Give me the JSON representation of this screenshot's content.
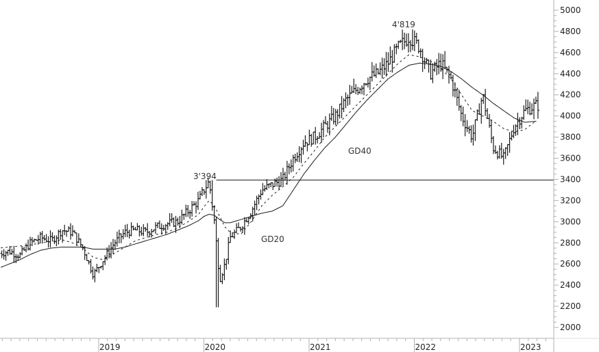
{
  "chart_data": {
    "type": "ohlc-bar",
    "title": "",
    "xlabel": "",
    "ylabel": "",
    "ylim": [
      2000,
      5000
    ],
    "y_ticks": [
      "5000",
      "4800",
      "4600",
      "4400",
      "4200",
      "4000",
      "3800",
      "3600",
      "3400",
      "3200",
      "3000",
      "2800",
      "2600",
      "2400",
      "2200",
      "2000"
    ],
    "x_ticks": [
      "2019",
      "2020",
      "2021",
      "2022",
      "2023"
    ],
    "grid": false,
    "legend": "none",
    "annotations": [
      {
        "text": "3'394",
        "value": 3394,
        "type": "peak-label"
      },
      {
        "text": "4'819",
        "value": 4819,
        "type": "peak-label"
      },
      {
        "text": "GD20",
        "type": "series-label",
        "series": "GD20"
      },
      {
        "text": "GD40",
        "type": "series-label",
        "series": "GD40"
      }
    ],
    "horizontal_line": {
      "value": 3394,
      "from_date": 2020.0,
      "to_date": 2023.25
    },
    "series": [
      {
        "name": "Price (weekly bars)",
        "style": "ohlc"
      },
      {
        "name": "GD20",
        "style": "dashed",
        "description": "20-week moving average"
      },
      {
        "name": "GD40",
        "style": "solid",
        "description": "40-week moving average"
      }
    ],
    "x": [
      2018.05,
      2018.15,
      2018.25,
      2018.35,
      2018.45,
      2018.55,
      2018.65,
      2018.75,
      2018.85,
      2018.95,
      2019.05,
      2019.15,
      2019.25,
      2019.35,
      2019.45,
      2019.55,
      2019.65,
      2019.75,
      2019.85,
      2019.95,
      2020.0,
      2020.05,
      2020.1,
      2020.15,
      2020.2,
      2020.25,
      2020.35,
      2020.45,
      2020.55,
      2020.65,
      2020.75,
      2020.85,
      2020.95,
      2021.05,
      2021.15,
      2021.25,
      2021.35,
      2021.45,
      2021.55,
      2021.65,
      2021.75,
      2021.85,
      2021.95,
      2022.05,
      2022.15,
      2022.25,
      2022.35,
      2022.45,
      2022.55,
      2022.65,
      2022.75,
      2022.85,
      2022.95,
      2023.05,
      2023.15
    ],
    "close": [
      2700,
      2720,
      2680,
      2800,
      2850,
      2820,
      2920,
      2900,
      2750,
      2500,
      2650,
      2800,
      2900,
      2920,
      2900,
      2950,
      2980,
      3000,
      3100,
      3200,
      3300,
      3380,
      3000,
      2450,
      2600,
      2850,
      2950,
      3100,
      3300,
      3350,
      3400,
      3600,
      3750,
      3800,
      3900,
      4000,
      4150,
      4250,
      4350,
      4400,
      4500,
      4650,
      4750,
      4650,
      4400,
      4500,
      4350,
      4000,
      3800,
      4200,
      3700,
      3600,
      3900,
      4050,
      4100
    ],
    "gd20": [
      2750,
      2760,
      2770,
      2780,
      2800,
      2810,
      2830,
      2800,
      2750,
      2660,
      2640,
      2700,
      2760,
      2820,
      2850,
      2880,
      2900,
      2940,
      3000,
      3070,
      3140,
      3200,
      3150,
      3050,
      2950,
      2900,
      2880,
      3000,
      3150,
      3250,
      3330,
      3420,
      3550,
      3670,
      3800,
      3900,
      4000,
      4100,
      4200,
      4300,
      4400,
      4500,
      4580,
      4560,
      4520,
      4450,
      4350,
      4200,
      4050,
      4000,
      3950,
      3880,
      3850,
      3870,
      3950
    ],
    "gd40": [
      2560,
      2600,
      2640,
      2690,
      2730,
      2750,
      2760,
      2760,
      2760,
      2740,
      2740,
      2740,
      2760,
      2790,
      2820,
      2850,
      2880,
      2920,
      2960,
      3010,
      3050,
      3070,
      3060,
      3020,
      2990,
      2990,
      3020,
      3050,
      3080,
      3100,
      3150,
      3300,
      3450,
      3580,
      3700,
      3800,
      3920,
      4040,
      4150,
      4250,
      4350,
      4420,
      4480,
      4500,
      4490,
      4470,
      4420,
      4350,
      4270,
      4200,
      4120,
      4050,
      3980,
      3940,
      3950
    ]
  },
  "axis": {
    "y_labels": [
      "5000",
      "4800",
      "4600",
      "4400",
      "4200",
      "4000",
      "3800",
      "3600",
      "3400",
      "3200",
      "3000",
      "2800",
      "2600",
      "2400",
      "2200",
      "2000"
    ],
    "x_labels": [
      "2019",
      "2020",
      "2021",
      "2022",
      "2023"
    ]
  },
  "annotations": {
    "peak_2020": "3'394",
    "peak_2021": "4'819",
    "gd20": "GD20",
    "gd40": "GD40"
  },
  "colors": {
    "bars": "#1a1a1a",
    "axis": "#b0b0b0",
    "line": "#1a1a1a",
    "text": "#222222"
  }
}
